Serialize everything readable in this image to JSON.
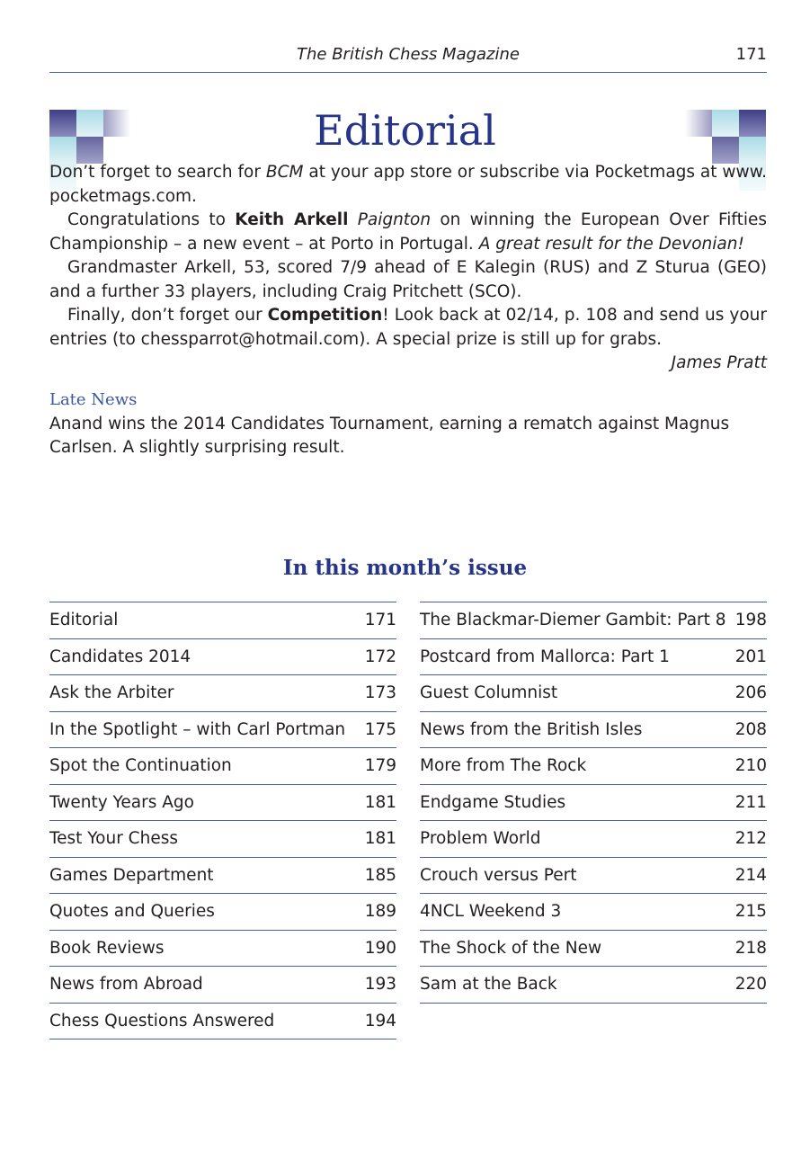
{
  "header": {
    "title": "The British Chess Magazine",
    "page": "171"
  },
  "editorial": {
    "title": "Editorial",
    "p1": {
      "a": "Don’t forget to search for ",
      "b": "BCM",
      "c": " at your app store or subscribe via Pocketmags at www. pocketmags.com."
    },
    "p2": {
      "a": "Congratulations to ",
      "b": "Keith Arkell",
      "c": "Paignton",
      "d": " on winning the European Over Fifties Championship – a new event – at Porto in Portugal. ",
      "e": "A great result for the Devonian!"
    },
    "p3": "Grandmaster Arkell, 53, scored 7/9 ahead of E Kalegin (RUS) and Z Sturua (GEO) and a further 33 players, including Craig Pritchett (SCO).",
    "p4": {
      "a": "Finally, don’t forget our ",
      "b": "Competition",
      "c": "! Look back at 02/14, p. 108 and send us your entries (to chessparrot@hotmail.com). A special prize is still up for grabs."
    },
    "signature": "James Pratt"
  },
  "late_news": {
    "heading": "Late News",
    "text": "Anand wins the 2014 Candidates Tournament, earning a rematch against Magnus Carlsen. A slightly surprising result."
  },
  "contents": {
    "heading": "In this month’s issue",
    "left": [
      [
        "Editorial",
        "171"
      ],
      [
        "Candidates 2014",
        "172"
      ],
      [
        "Ask the Arbiter",
        "173"
      ],
      [
        "In the Spotlight – with Carl Portman",
        "175"
      ],
      [
        "Spot the Continuation",
        "179"
      ],
      [
        "Twenty Years Ago",
        "181"
      ],
      [
        "Test Your Chess",
        "181"
      ],
      [
        "Games Department",
        "185"
      ],
      [
        "Quotes and Queries",
        "189"
      ],
      [
        "Book Reviews",
        "190"
      ],
      [
        "News from Abroad",
        "193"
      ],
      [
        "Chess Questions Answered",
        "194"
      ]
    ],
    "right": [
      [
        "The Blackmar-Diemer Gambit: Part 8",
        "198"
      ],
      [
        "Postcard from Mallorca: Part 1",
        "201"
      ],
      [
        "Guest Columnist",
        "206"
      ],
      [
        "News from the British Isles",
        "208"
      ],
      [
        "More from The Rock",
        "210"
      ],
      [
        "Endgame Studies",
        "211"
      ],
      [
        "Problem World",
        "212"
      ],
      [
        "Crouch versus Pert",
        "214"
      ],
      [
        "4NCL Weekend 3",
        "215"
      ],
      [
        "The Shock of the New",
        "218"
      ],
      [
        "Sam at the Back",
        "220"
      ]
    ]
  }
}
